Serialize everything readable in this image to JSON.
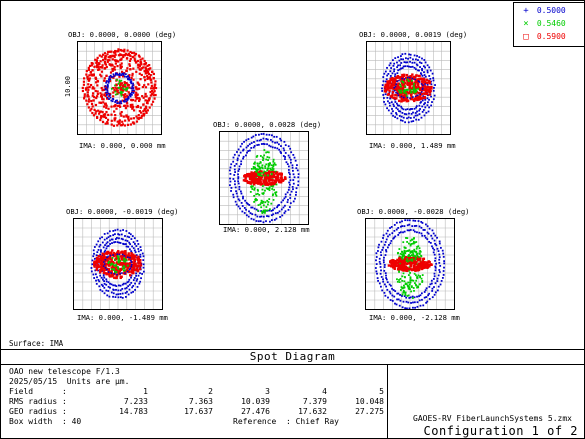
{
  "legend": [
    {
      "symbol": "+",
      "wavelength": "0.5000",
      "color": "#0000cc",
      "symbol_name": "plus-marker"
    },
    {
      "symbol": "×",
      "wavelength": "0.5460",
      "color": "#00cc00",
      "symbol_name": "cross-marker"
    },
    {
      "symbol": "□",
      "wavelength": "0.5900",
      "color": "#ee0000",
      "symbol_name": "square-marker"
    }
  ],
  "spots": [
    {
      "id": "field-1",
      "obj": "OBJ: 0.0000, 0.0000 (deg)",
      "ima": "IMA: 0.000, 0.000 mm",
      "scale": "10.00",
      "shape": "circle"
    },
    {
      "id": "field-2",
      "obj": "OBJ: 0.0000, 0.0019 (deg)",
      "ima": "IMA: 0.000, 1.489 mm",
      "shape": "flat"
    },
    {
      "id": "field-3",
      "obj": "OBJ: 0.0000, 0.0028 (deg)",
      "ima": "IMA: 0.000, 2.128 mm",
      "shape": "tall"
    },
    {
      "id": "field-4",
      "obj": "OBJ: 0.0000, -0.0019 (deg)",
      "ima": "IMA: 0.000, -1.489 mm",
      "shape": "flat"
    },
    {
      "id": "field-5",
      "obj": "OBJ: 0.0000, -0.0028 (deg)",
      "ima": "IMA: 0.000, -2.128 mm",
      "shape": "tall"
    }
  ],
  "surface": "Surface: IMA",
  "title": "Spot Diagram",
  "info": {
    "line1": "OAO new telescope F/1.3",
    "line2": "2025/05/15  Units are µm.",
    "field_label": "Field      :",
    "rms_label": "RMS radius :",
    "geo_label": "GEO radius :",
    "fields": [
      "1",
      "2",
      "3",
      "4",
      "5"
    ],
    "rms": [
      "7.233",
      "7.363",
      "10.039",
      "7.379",
      "10.048"
    ],
    "geo": [
      "14.783",
      "17.637",
      "27.476",
      "17.632",
      "27.275"
    ],
    "box_width": "Box width  : 40",
    "reference": "Reference  : Chief Ray"
  },
  "file": "GAOES-RV FiberLaunchSystems 5.zmx",
  "config": "Configuration 1 of 2"
}
